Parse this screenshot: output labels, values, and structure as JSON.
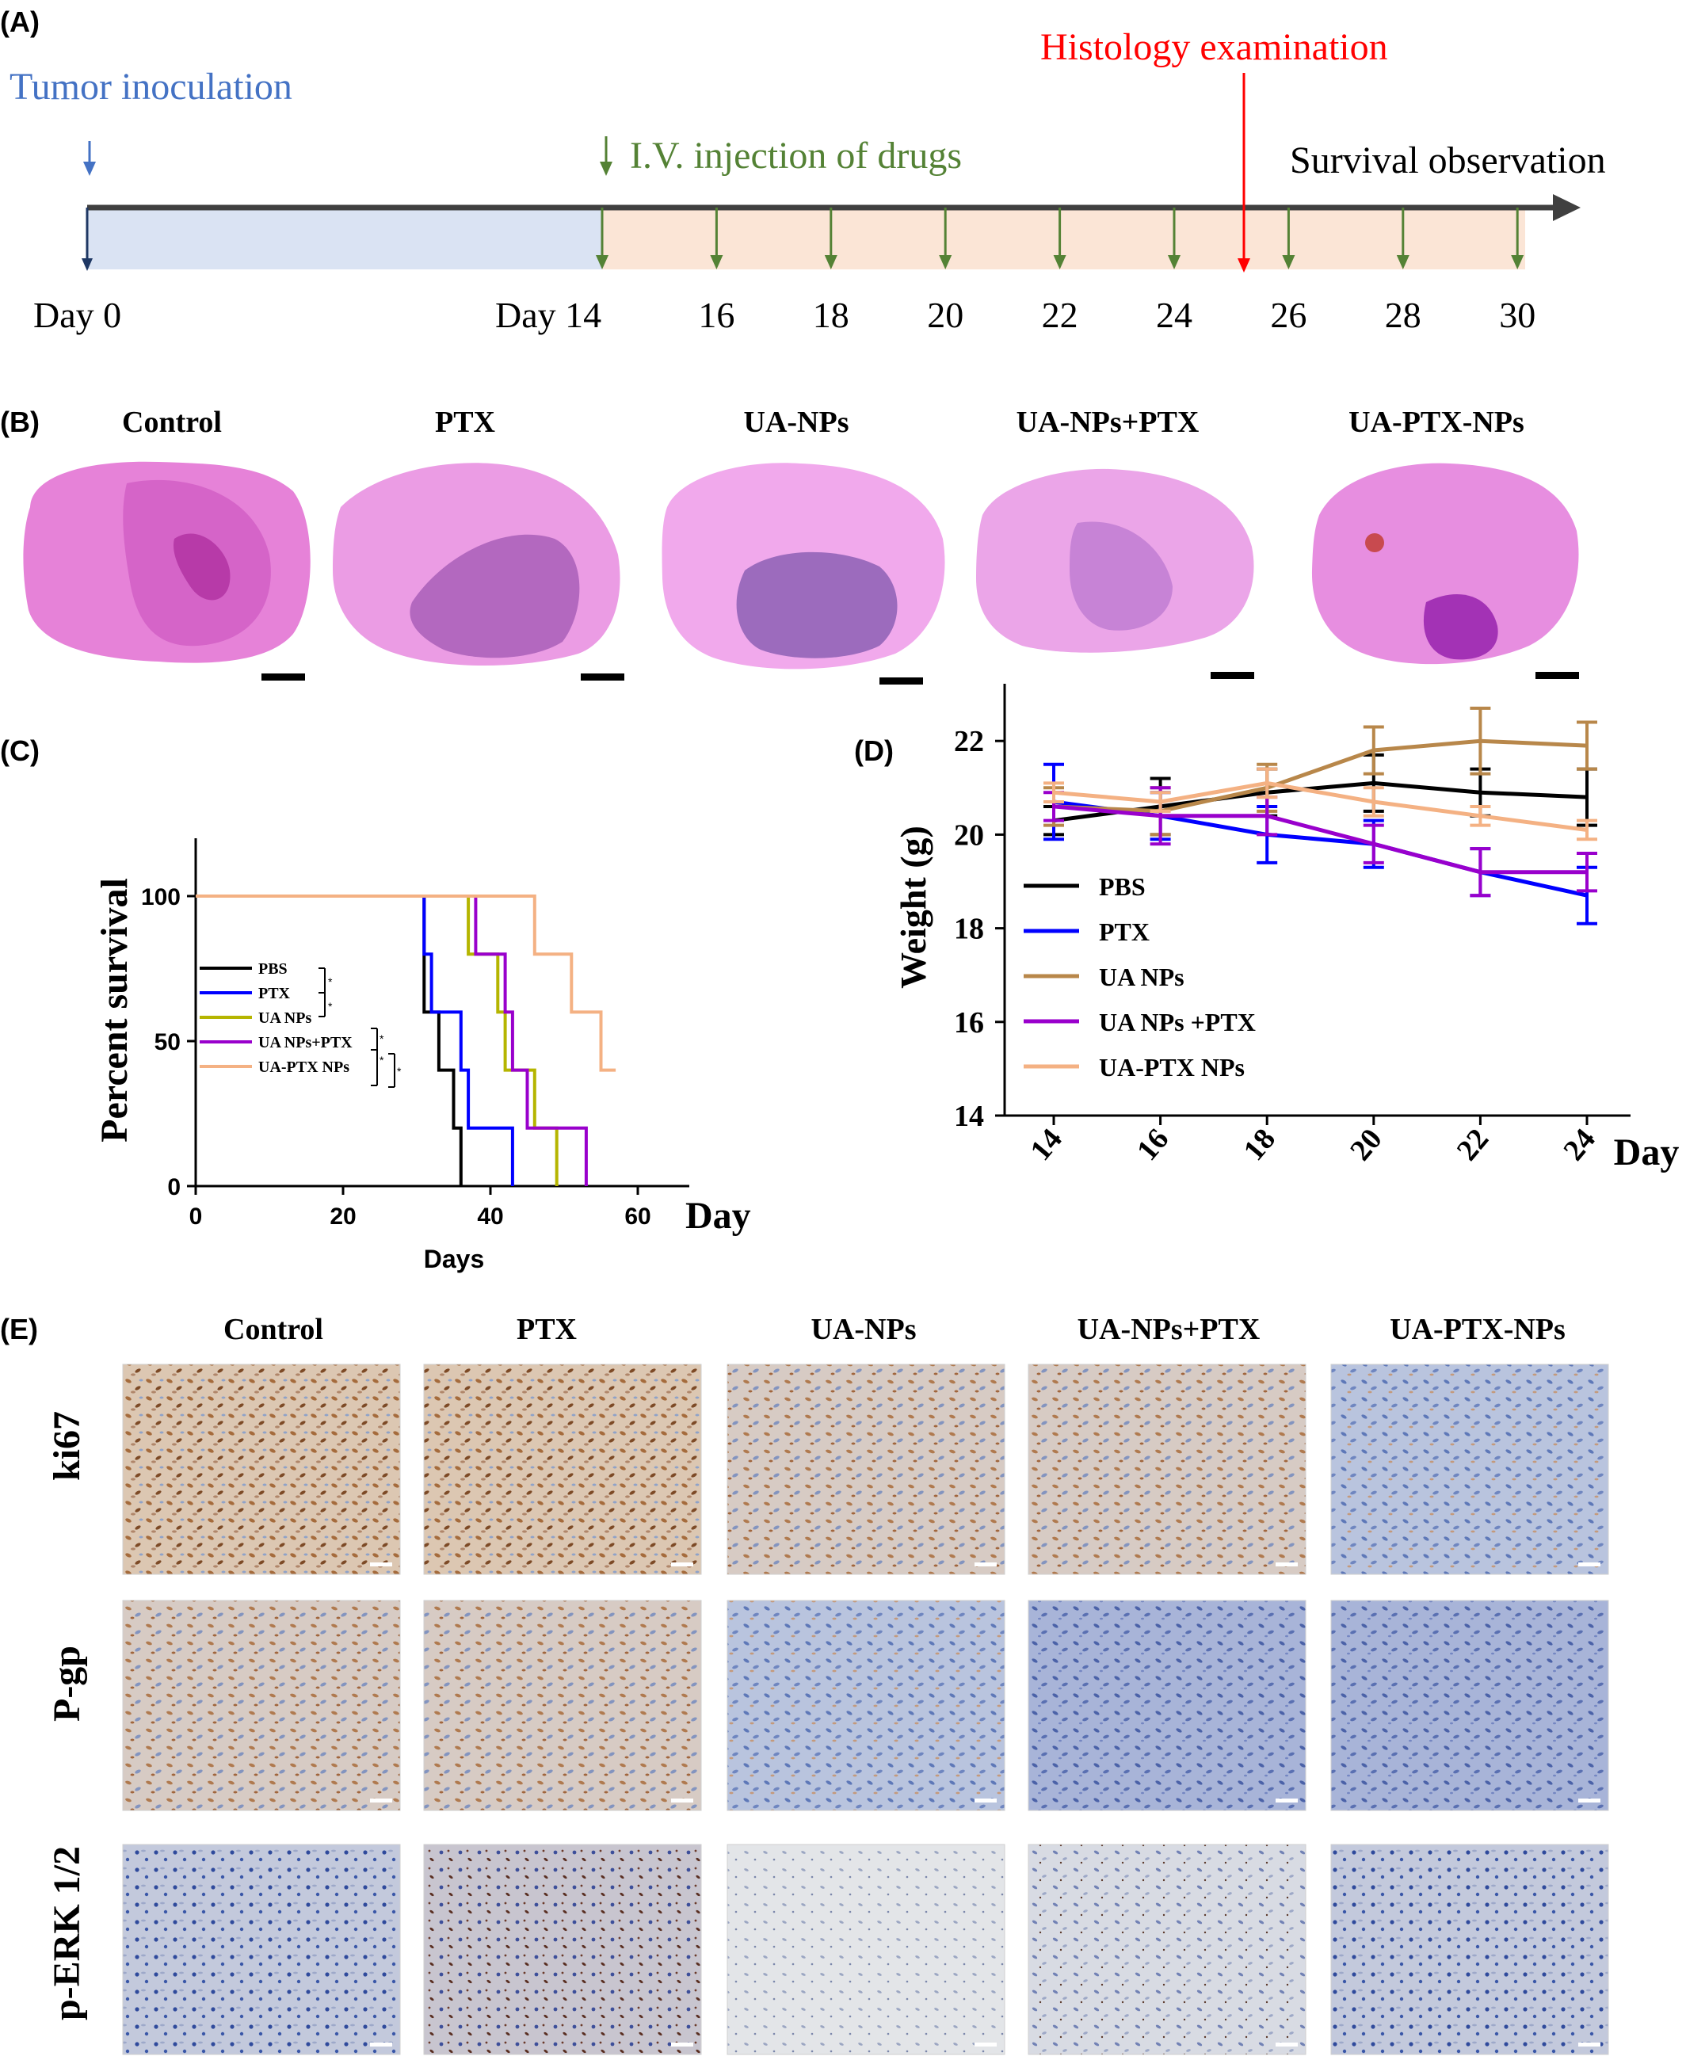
{
  "panel_labels": {
    "a": "(A)",
    "b": "(B)",
    "c": "(C)",
    "d": "(D)",
    "e": "(E)"
  },
  "timeline": {
    "tumor_label": "Tumor inoculation",
    "injection_label": "I.V. injection of drugs",
    "histology_label": "Histology examination",
    "survival_label": "Survival observation",
    "day0_label": "Day 0",
    "day14_label": "Day 14",
    "later_days": [
      "16",
      "18",
      "20",
      "22",
      "24",
      "26",
      "28",
      "30"
    ],
    "injection_days": [
      14,
      16,
      18,
      20,
      22,
      24,
      26,
      28,
      30
    ],
    "histology_day": 25,
    "colors": {
      "tumor": "#4472c4",
      "injection": "#548235",
      "histology": "#ff0000",
      "pre_band": "#dae3f3",
      "post_band": "#fbe5d6"
    }
  },
  "groups_b": [
    "Control",
    "PTX",
    "UA-NPs",
    "UA-NPs+PTX",
    "UA-PTX-NPs"
  ],
  "groups_e": [
    "Control",
    "PTX",
    "UA-NPs",
    "UA-NPs+PTX",
    "UA-PTX-NPs"
  ],
  "stain_rows": [
    "ki67",
    "P-gp",
    "p-ERK 1/2"
  ],
  "chart_data": [
    {
      "type": "line",
      "subtype": "kaplan-meier",
      "title": "",
      "xlabel": "Days",
      "ylabel": "Percent survival",
      "xlabel_extra": "Day",
      "xlim": [
        0,
        70
      ],
      "ylim": [
        0,
        120
      ],
      "xticks": [
        "0",
        "20",
        "40",
        "60"
      ],
      "yticks": [
        "0",
        "50",
        "100"
      ],
      "grid": false,
      "legend_position": "inside-left",
      "significance_marks": [
        "*",
        "*",
        "*",
        "*",
        "*"
      ],
      "series": [
        {
          "name": "PBS",
          "color": "#000000",
          "steps": [
            [
              0,
              100
            ],
            [
              31,
              100
            ],
            [
              31,
              60
            ],
            [
              33,
              60
            ],
            [
              33,
              40
            ],
            [
              35,
              40
            ],
            [
              35,
              20
            ],
            [
              36,
              20
            ],
            [
              36,
              0
            ]
          ]
        },
        {
          "name": "PTX",
          "color": "#0000ff",
          "steps": [
            [
              0,
              100
            ],
            [
              31,
              100
            ],
            [
              31,
              80
            ],
            [
              32,
              80
            ],
            [
              32,
              60
            ],
            [
              36,
              60
            ],
            [
              36,
              40
            ],
            [
              37,
              40
            ],
            [
              37,
              20
            ],
            [
              43,
              20
            ],
            [
              43,
              0
            ]
          ]
        },
        {
          "name": "UA NPs",
          "color": "#b5b500",
          "steps": [
            [
              0,
              100
            ],
            [
              37,
              100
            ],
            [
              37,
              80
            ],
            [
              41,
              80
            ],
            [
              41,
              60
            ],
            [
              42,
              60
            ],
            [
              42,
              40
            ],
            [
              46,
              40
            ],
            [
              46,
              20
            ],
            [
              49,
              20
            ],
            [
              49,
              0
            ]
          ]
        },
        {
          "name": "UA NPs+PTX",
          "color": "#9900cc",
          "steps": [
            [
              0,
              100
            ],
            [
              38,
              100
            ],
            [
              38,
              80
            ],
            [
              42,
              80
            ],
            [
              42,
              60
            ],
            [
              43,
              60
            ],
            [
              43,
              40
            ],
            [
              45,
              40
            ],
            [
              45,
              20
            ],
            [
              53,
              20
            ],
            [
              53,
              0
            ]
          ]
        },
        {
          "name": "UA-PTX NPs",
          "color": "#f4b183",
          "steps": [
            [
              0,
              100
            ],
            [
              46,
              100
            ],
            [
              46,
              80
            ],
            [
              51,
              80
            ],
            [
              51,
              60
            ],
            [
              55,
              60
            ],
            [
              55,
              40
            ],
            [
              57,
              40
            ]
          ]
        }
      ]
    },
    {
      "type": "line",
      "title": "",
      "xlabel": "Day",
      "ylabel": "Weight (g)",
      "x": [
        14,
        16,
        18,
        20,
        22,
        24
      ],
      "xticks": [
        "14",
        "16",
        "18",
        "20",
        "22",
        "24"
      ],
      "yticks": [
        "14",
        "16",
        "18",
        "20",
        "22"
      ],
      "ylim": [
        14,
        23
      ],
      "grid": false,
      "legend_position": "bottom-left",
      "series": [
        {
          "name": "PBS",
          "color": "#000000",
          "values": [
            20.3,
            20.6,
            20.9,
            21.1,
            20.9,
            20.8
          ],
          "errors": [
            0.3,
            0.6,
            0.5,
            0.6,
            0.5,
            0.6
          ]
        },
        {
          "name": "PTX",
          "color": "#0000ff",
          "values": [
            20.7,
            20.4,
            20.0,
            19.8,
            19.2,
            18.7
          ],
          "errors": [
            0.8,
            0.5,
            0.6,
            0.5,
            0.5,
            0.6
          ]
        },
        {
          "name": "UA NPs",
          "color": "#b8874a",
          "values": [
            20.6,
            20.5,
            21.0,
            21.8,
            22.0,
            21.9
          ],
          "errors": [
            0.4,
            0.5,
            0.5,
            0.5,
            0.7,
            0.5
          ]
        },
        {
          "name": "UA NPs +PTX",
          "color": "#9900cc",
          "values": [
            20.6,
            20.4,
            20.4,
            19.8,
            19.2,
            19.2
          ],
          "errors": [
            0.3,
            0.6,
            0.4,
            0.4,
            0.5,
            0.4
          ]
        },
        {
          "name": "UA-PTX NPs",
          "color": "#f4b183",
          "values": [
            20.9,
            20.7,
            21.1,
            20.7,
            20.4,
            20.1
          ],
          "errors": [
            0.2,
            0.2,
            0.3,
            0.3,
            0.2,
            0.2
          ]
        }
      ]
    }
  ]
}
